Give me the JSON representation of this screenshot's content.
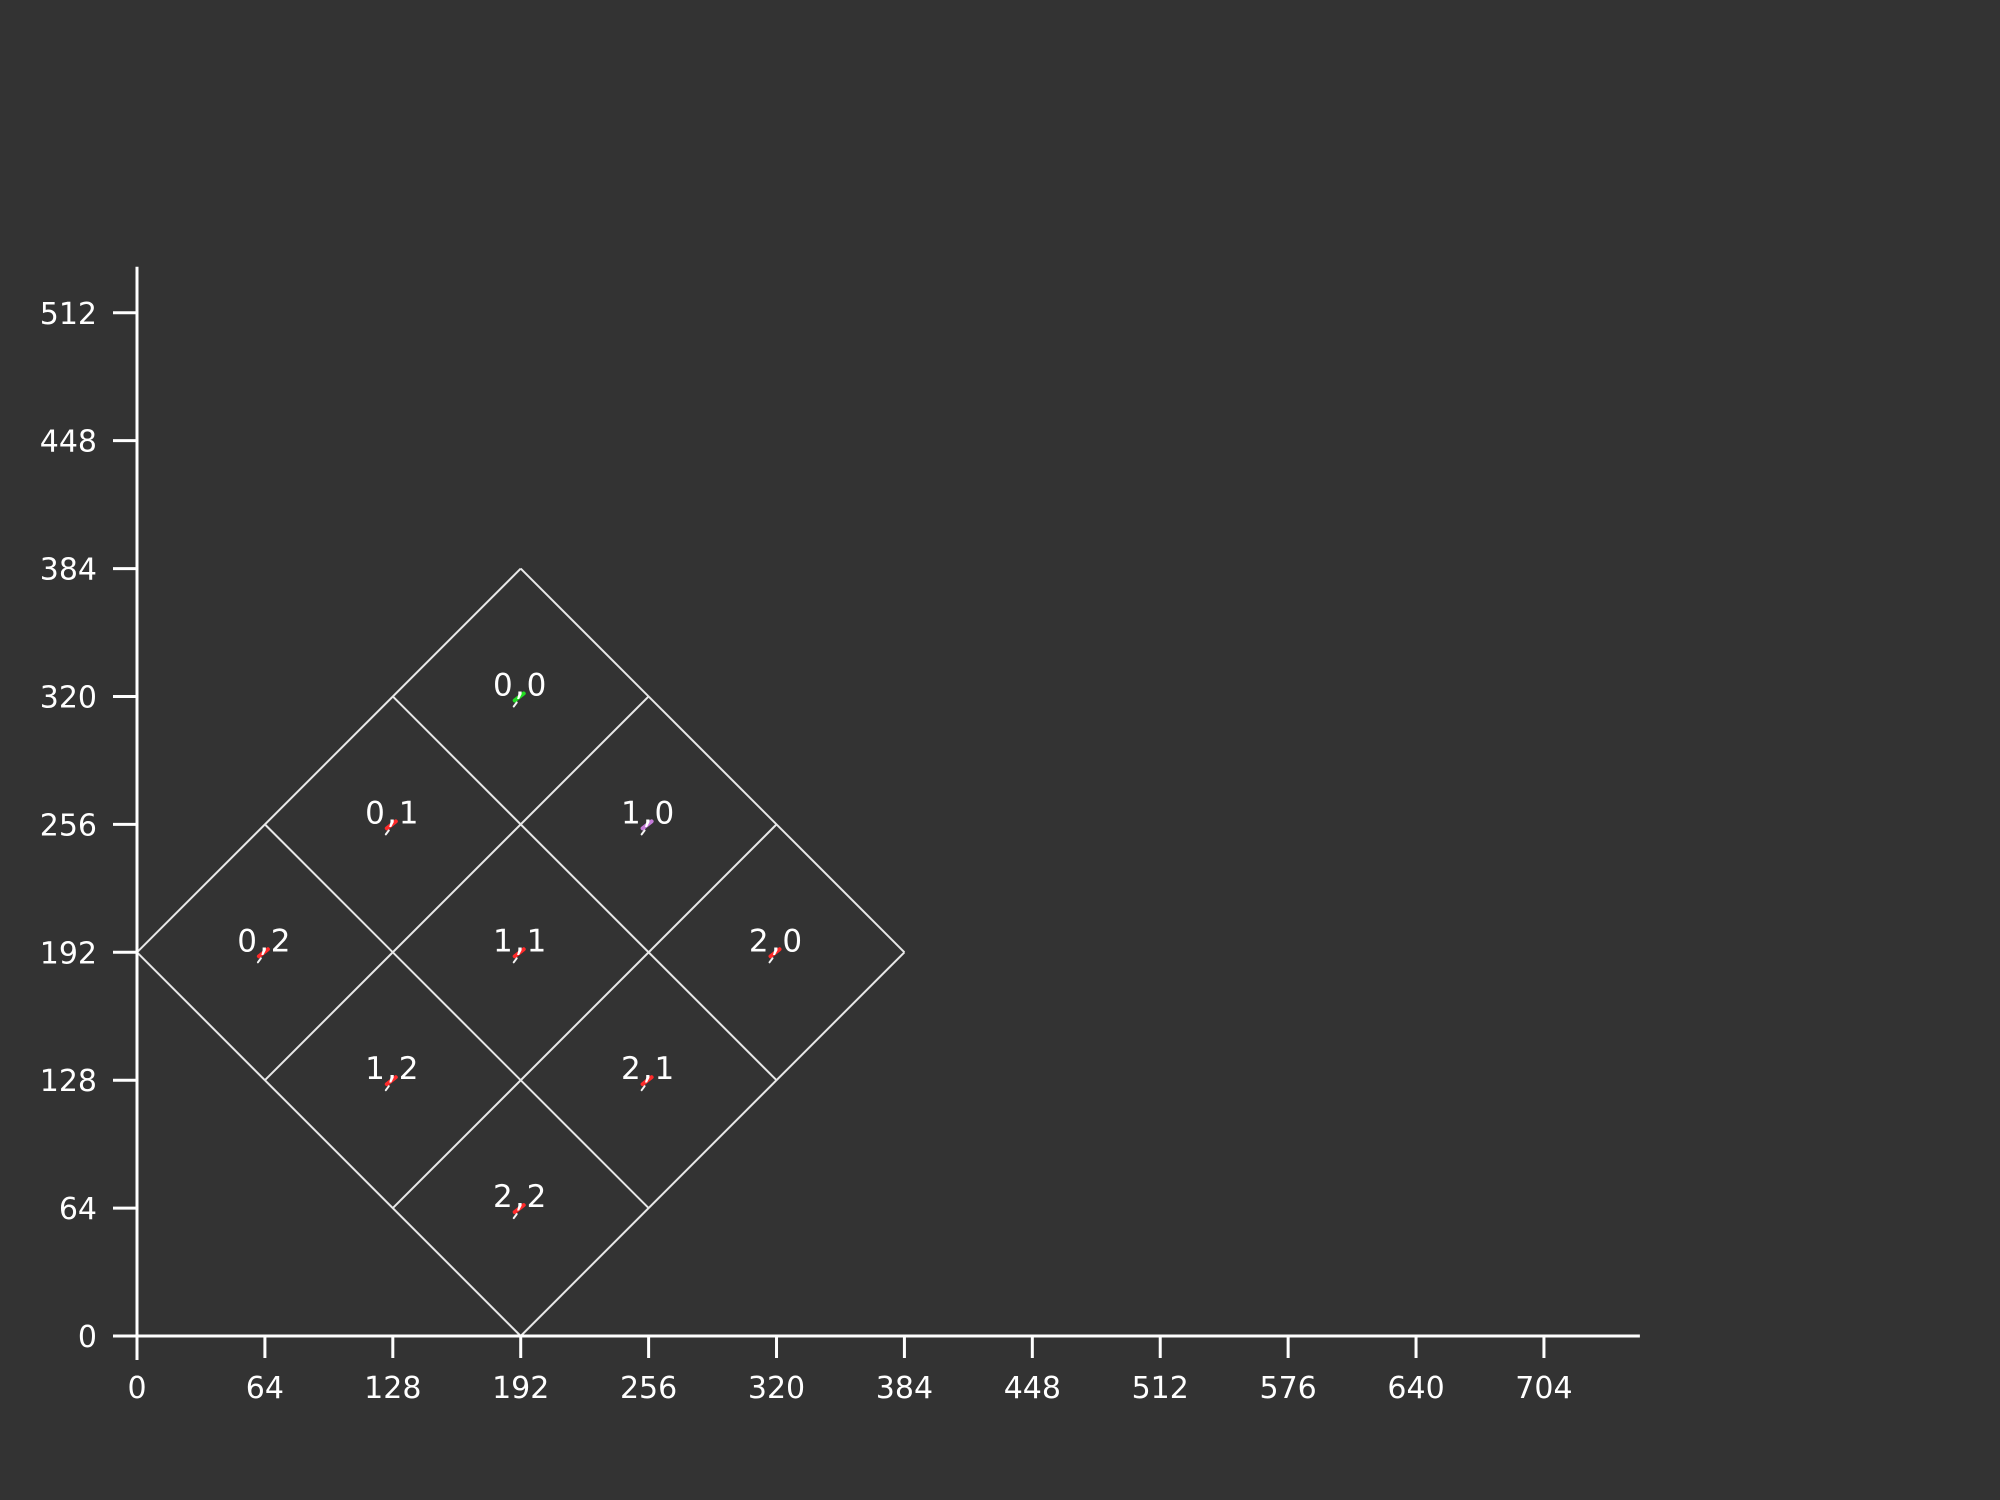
{
  "colors": {
    "background": "#333333",
    "axis": "#ffffff",
    "grid_line": "#e8e8e8",
    "label": "#ffffff",
    "marker_default": "#ff2a2a",
    "marker_origin": "#22dd22",
    "marker_selected": "#c47ad8"
  },
  "axes": {
    "x_ticks": [
      "0",
      "64",
      "128",
      "192",
      "256",
      "320",
      "384",
      "448",
      "512",
      "576",
      "640",
      "704"
    ],
    "y_ticks": [
      "0",
      "64",
      "128",
      "192",
      "256",
      "320",
      "384",
      "448",
      "512"
    ],
    "x_range": [
      0,
      747
    ],
    "y_range": [
      0,
      535
    ]
  },
  "grid": {
    "rows": 3,
    "cols": 3,
    "cell_half_width": 64,
    "cell_half_height": 64,
    "origin_top": [
      192,
      384
    ]
  },
  "cells": [
    {
      "label": "0,0",
      "i": 0,
      "j": 0,
      "x": 192,
      "y": 320,
      "marker": "origin"
    },
    {
      "label": "0,1",
      "i": 0,
      "j": 1,
      "x": 128,
      "y": 256,
      "marker": "default"
    },
    {
      "label": "1,0",
      "i": 1,
      "j": 0,
      "x": 256,
      "y": 256,
      "marker": "selected"
    },
    {
      "label": "0,2",
      "i": 0,
      "j": 2,
      "x": 64,
      "y": 192,
      "marker": "default"
    },
    {
      "label": "1,1",
      "i": 1,
      "j": 1,
      "x": 192,
      "y": 192,
      "marker": "default"
    },
    {
      "label": "2,0",
      "i": 2,
      "j": 0,
      "x": 320,
      "y": 192,
      "marker": "default"
    },
    {
      "label": "1,2",
      "i": 1,
      "j": 2,
      "x": 128,
      "y": 128,
      "marker": "default"
    },
    {
      "label": "2,1",
      "i": 2,
      "j": 1,
      "x": 256,
      "y": 128,
      "marker": "default"
    },
    {
      "label": "2,2",
      "i": 2,
      "j": 2,
      "x": 192,
      "y": 64,
      "marker": "default"
    }
  ]
}
